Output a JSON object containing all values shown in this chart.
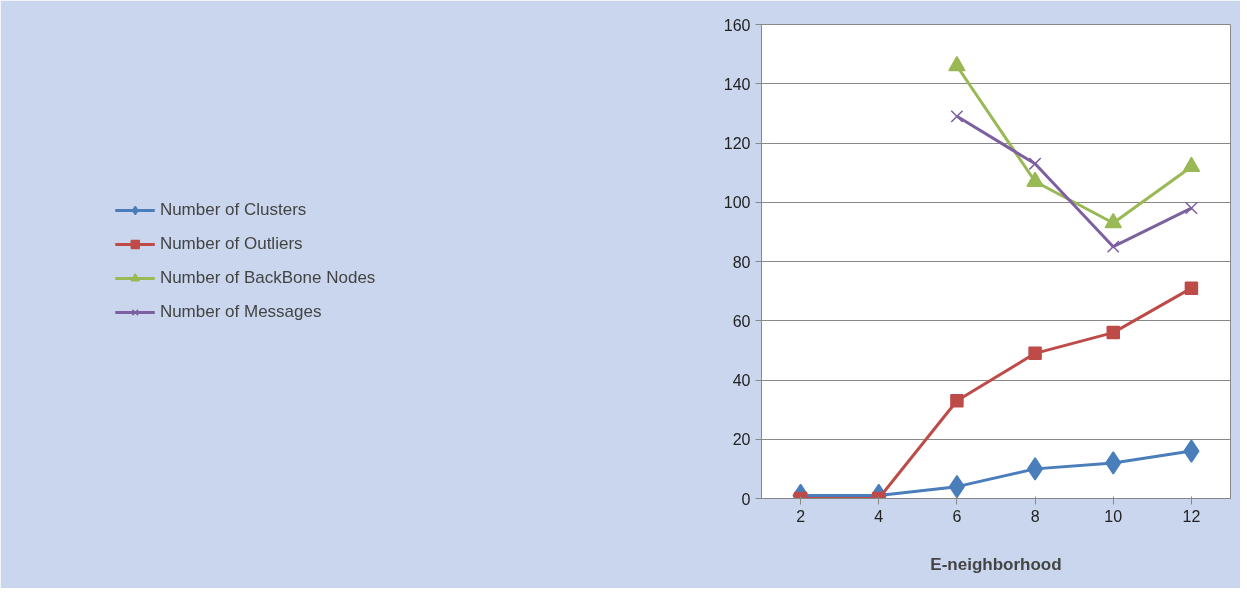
{
  "chart_data": {
    "type": "line",
    "xlabel": "E-neighborhood",
    "categories": [
      "2",
      "4",
      "6",
      "8",
      "10",
      "12"
    ],
    "series": [
      {
        "name": "Number of Clusters",
        "color": "#4a7ebb",
        "marker": "diamond",
        "values": [
          1,
          1,
          4,
          10,
          12,
          16
        ]
      },
      {
        "name": "Number of Outliers",
        "color": "#be4b48",
        "marker": "square",
        "values": [
          0,
          0,
          33,
          49,
          56,
          71
        ]
      },
      {
        "name": "Number of BackBone Nodes",
        "color": "#98b954",
        "marker": "triangle",
        "values": [
          null,
          null,
          146,
          107,
          93,
          112
        ]
      },
      {
        "name": "Number of Messages",
        "color": "#7d60a0",
        "marker": "cross",
        "values": [
          null,
          null,
          129,
          113,
          85,
          98
        ]
      }
    ],
    "ylim": [
      0,
      160
    ],
    "yticks": [
      0,
      20,
      40,
      60,
      80,
      100,
      120,
      140,
      160
    ],
    "grid": "y",
    "legend": "left",
    "line_style": "solid"
  }
}
